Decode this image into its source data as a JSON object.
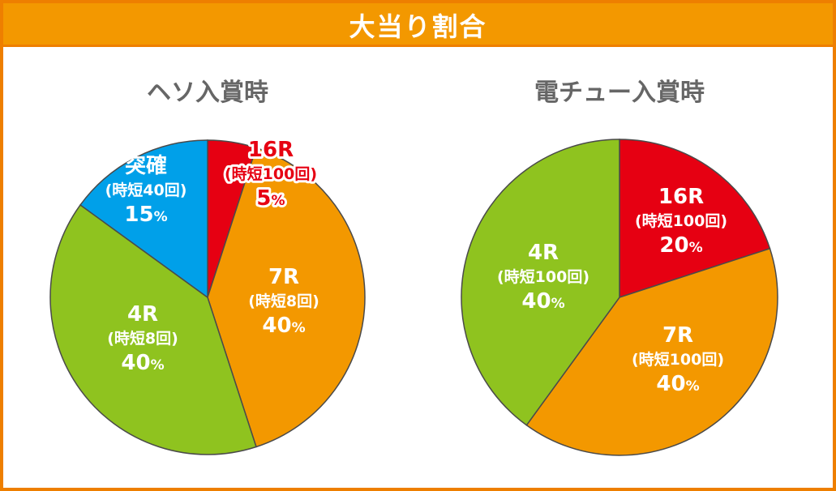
{
  "header": {
    "title": "大当り割合"
  },
  "chart_data": [
    {
      "type": "pie",
      "title": "ヘソ入賞時",
      "slices": [
        {
          "name": "16R",
          "sub": "(時短100回)",
          "value": 5,
          "pct_label": "5",
          "color": "#e60012"
        },
        {
          "name": "7R",
          "sub": "(時短8回)",
          "value": 40,
          "pct_label": "40",
          "color": "#f39800"
        },
        {
          "name": "4R",
          "sub": "(時短8回)",
          "value": 40,
          "pct_label": "40",
          "color": "#8fc31f"
        },
        {
          "name": "突確",
          "sub": "(時短40回)",
          "value": 15,
          "pct_label": "15",
          "color": "#00a0e9"
        }
      ],
      "percent_symbol": "%"
    },
    {
      "type": "pie",
      "title": "電チュー入賞時",
      "slices": [
        {
          "name": "16R",
          "sub": "(時短100回)",
          "value": 20,
          "pct_label": "20",
          "color": "#e60012"
        },
        {
          "name": "7R",
          "sub": "(時短100回)",
          "value": 40,
          "pct_label": "40",
          "color": "#f39800"
        },
        {
          "name": "4R",
          "sub": "(時短100回)",
          "value": 40,
          "pct_label": "40",
          "color": "#8fc31f"
        }
      ],
      "percent_symbol": "%"
    }
  ]
}
